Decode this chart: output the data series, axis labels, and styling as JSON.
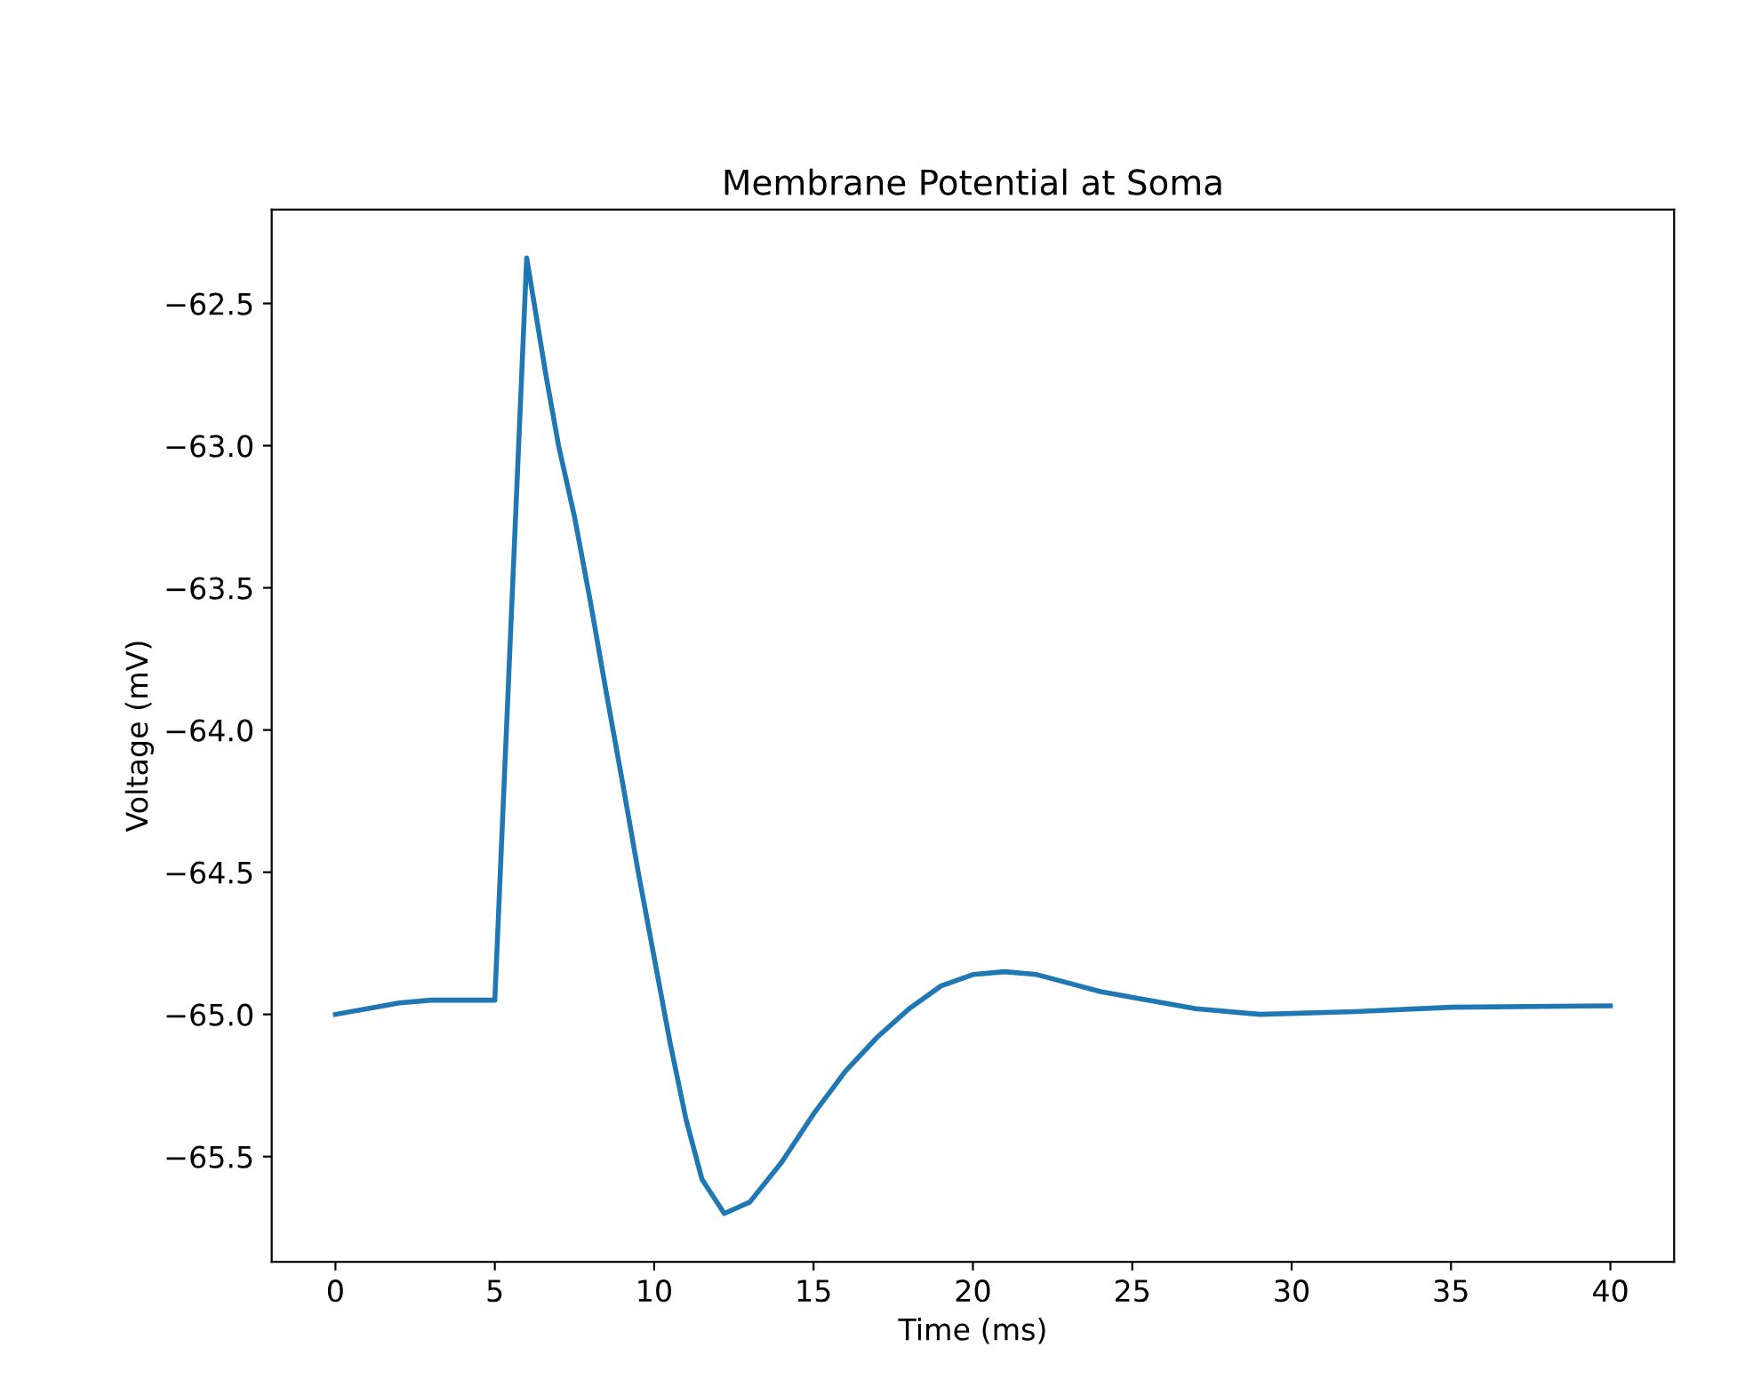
{
  "chart_data": {
    "type": "line",
    "title": "Membrane Potential at Soma",
    "xlabel": "Time (ms)",
    "ylabel": "Voltage (mV)",
    "series": [
      {
        "color": "#1f77b4",
        "x": [
          0,
          1,
          2,
          3,
          4,
          5,
          6,
          6.6,
          7,
          7.5,
          8,
          8.5,
          9,
          9.5,
          10,
          10.5,
          11,
          11.5,
          12.2,
          13,
          14,
          15,
          16,
          17,
          18,
          19,
          20,
          21,
          22,
          23,
          24,
          25,
          27,
          29,
          32,
          35,
          40
        ],
        "values": [
          -65.0,
          -64.98,
          -64.96,
          -64.95,
          -64.95,
          -64.95,
          -62.34,
          -62.75,
          -63.0,
          -63.25,
          -63.55,
          -63.87,
          -64.18,
          -64.5,
          -64.8,
          -65.1,
          -65.37,
          -65.58,
          -65.7,
          -65.66,
          -65.52,
          -65.35,
          -65.2,
          -65.08,
          -64.98,
          -64.9,
          -64.86,
          -64.85,
          -64.86,
          -64.89,
          -64.92,
          -64.94,
          -64.98,
          -65.0,
          -64.99,
          -64.975,
          -64.97
        ]
      }
    ],
    "xlim": [
      -2,
      42
    ],
    "ylim": [
      -65.87,
      -62.17
    ],
    "xticks": [
      0,
      5,
      10,
      15,
      20,
      25,
      30,
      35,
      40
    ],
    "yticks": [
      {
        "value": -65.5,
        "label": "−65.5"
      },
      {
        "value": -65.0,
        "label": "−65.0"
      },
      {
        "value": -64.5,
        "label": "−64.5"
      },
      {
        "value": -64.0,
        "label": "−64.0"
      },
      {
        "value": -63.5,
        "label": "−63.5"
      },
      {
        "value": -63.0,
        "label": "−63.0"
      },
      {
        "value": -62.5,
        "label": "−62.5"
      }
    ],
    "grid": false,
    "marker": "none",
    "line_style": "solid"
  }
}
